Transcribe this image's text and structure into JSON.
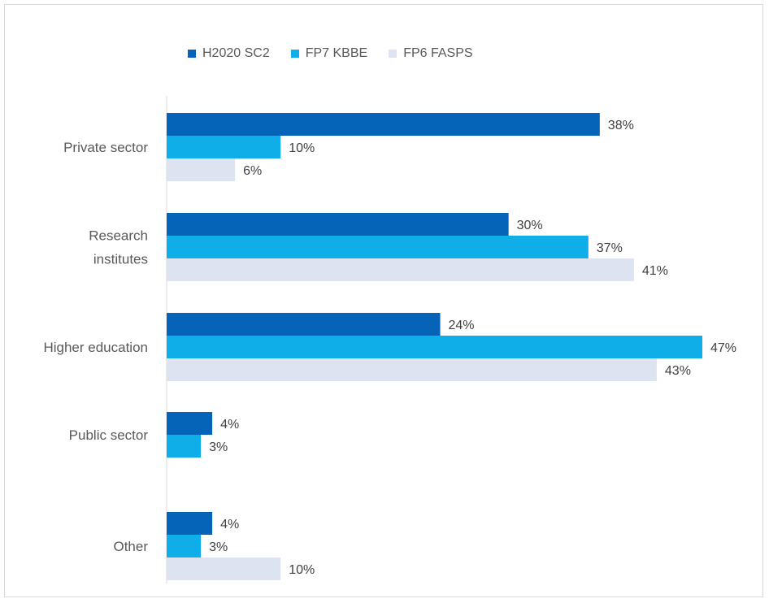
{
  "chart_data": {
    "type": "bar",
    "orientation": "horizontal",
    "categories": [
      [
        "Private sector"
      ],
      [
        "Research",
        "institutes"
      ],
      [
        "Higher education"
      ],
      [
        "Public sector"
      ],
      [
        "Other"
      ]
    ],
    "series": [
      {
        "name": "H2020 SC2",
        "color": "#0563b8",
        "values": [
          38,
          30,
          24,
          4,
          4
        ],
        "labels": [
          "38%",
          "30%",
          "24%",
          "4%",
          "4%"
        ]
      },
      {
        "name": "FP7 KBBE",
        "color": "#10aee8",
        "values": [
          10,
          37,
          47,
          3,
          3
        ],
        "labels": [
          "10%",
          "37%",
          "47%",
          "3%",
          "3%"
        ]
      },
      {
        "name": "FP6 FASPS",
        "color": "#dde3f0",
        "values": [
          6,
          41,
          43,
          null,
          10
        ],
        "labels": [
          "6%",
          "41%",
          "43%",
          "",
          "10%"
        ]
      }
    ],
    "xlim": [
      0,
      47
    ],
    "legend_position": "top",
    "grid": false
  }
}
